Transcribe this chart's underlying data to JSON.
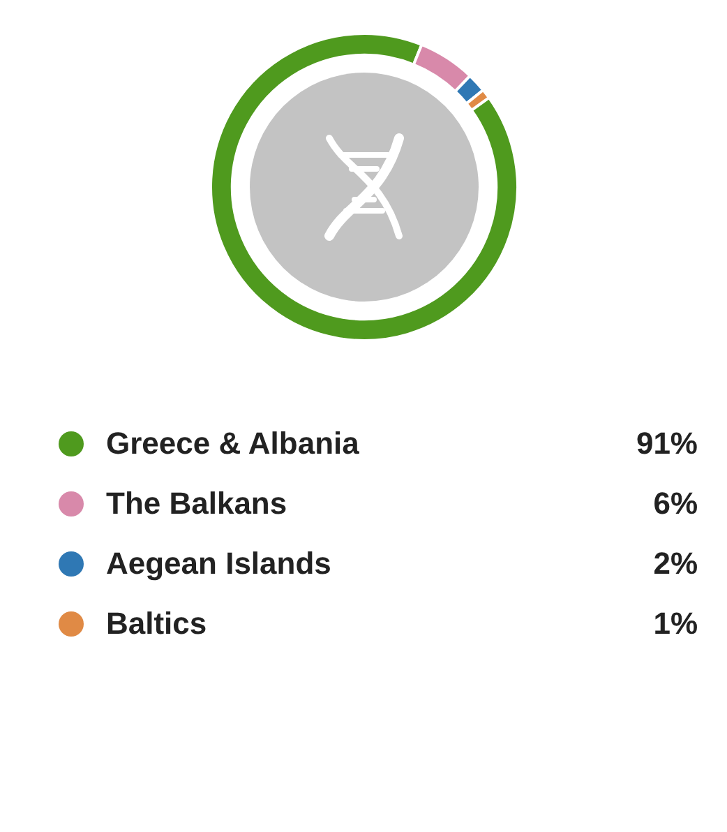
{
  "chart_data": {
    "type": "donut",
    "categories": [
      "Greece & Albania",
      "The Balkans",
      "Aegean Islands",
      "Baltics"
    ],
    "values": [
      91,
      6,
      2,
      1
    ],
    "colors": [
      "#4f9a1e",
      "#d889aa",
      "#2f78b4",
      "#e08a45"
    ],
    "value_labels": [
      "91%",
      "6%",
      "2%",
      "1%"
    ],
    "legend": "bottom"
  }
}
